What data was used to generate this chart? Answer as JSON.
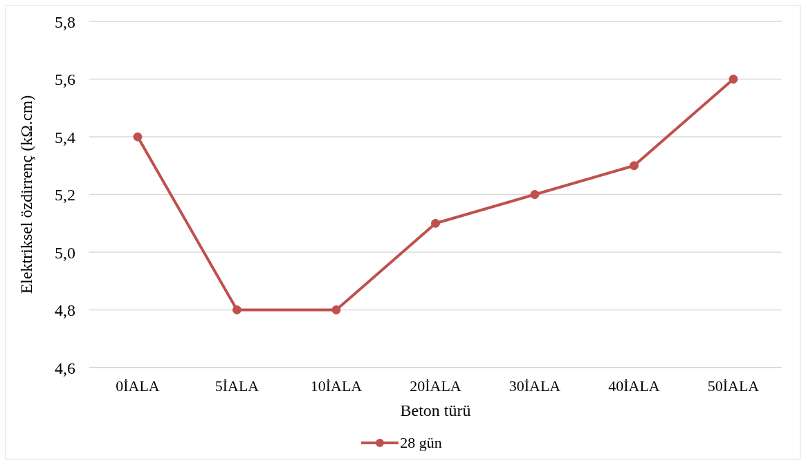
{
  "chart_data": {
    "type": "line",
    "xlabel": "Beton türü",
    "ylabel": "Elektriksel özdirrenç (kΩ.cm)",
    "categories": [
      "0İALA",
      "5İALA",
      "10İALA",
      "20İALA",
      "30İALA",
      "40İALA",
      "50İALA"
    ],
    "series": [
      {
        "name": "28 gün",
        "color": "#c0504d",
        "values": [
          5.4,
          4.8,
          4.8,
          5.1,
          5.2,
          5.3,
          5.6
        ]
      }
    ],
    "ylim": [
      4.6,
      5.8
    ],
    "yticks": [
      {
        "value": 4.6,
        "label": "4,6"
      },
      {
        "value": 4.8,
        "label": "4,8"
      },
      {
        "value": 5.0,
        "label": "5,0"
      },
      {
        "value": 5.2,
        "label": "5,2"
      },
      {
        "value": 5.4,
        "label": "5,4"
      },
      {
        "value": 5.6,
        "label": "5,6"
      },
      {
        "value": 5.8,
        "label": "5,8"
      }
    ],
    "grid": "y",
    "legend": "bottom",
    "marker": "circle",
    "line_style": "solid"
  }
}
